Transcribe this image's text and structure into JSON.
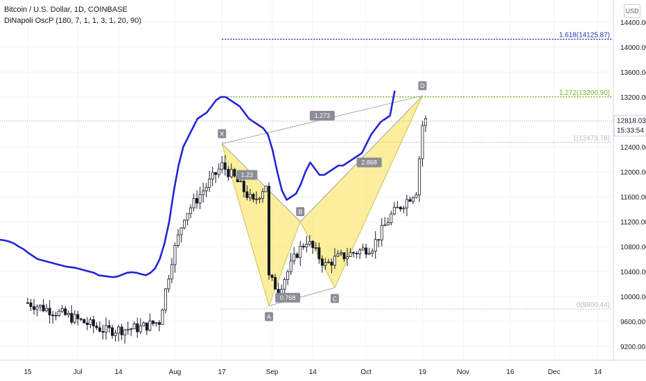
{
  "legend": {
    "symbol": "Bitcoin / U.S. Dollar, 1D, COINBASE",
    "indicator": "DiNapoli OscP (180, 7, 1, 1, 3, 1, 20, 90)"
  },
  "currency_button": "USD",
  "price_axis": {
    "ticks": [
      "14400.00",
      "14000.00",
      "13600.00",
      "13200.00",
      "12800.00",
      "12400.00",
      "12000.00",
      "11600.00",
      "11200.00",
      "10800.00",
      "10400.00",
      "10000.00",
      "9600.00",
      "9200.00"
    ]
  },
  "time_axis": {
    "labels": [
      {
        "text": "15",
        "t": 0
      },
      {
        "text": "Jul",
        "t": 16
      },
      {
        "text": "14",
        "t": 29
      },
      {
        "text": "Aug",
        "t": 47
      },
      {
        "text": "17",
        "t": 62
      },
      {
        "text": "Sep",
        "t": 78
      },
      {
        "text": "14",
        "t": 91
      },
      {
        "text": "Oct",
        "t": 108
      },
      {
        "text": "19",
        "t": 126
      },
      {
        "text": "Nov",
        "t": 139
      },
      {
        "text": "16",
        "t": 154
      },
      {
        "text": "Dec",
        "t": 168
      },
      {
        "text": "14",
        "t": 182
      }
    ]
  },
  "colors": {
    "up": "#131722",
    "down": "#131722",
    "oscillator": "#2424d6",
    "pattern_fill": "#f7e04a",
    "fib_1618": "#2d2db0",
    "fib_1272": "#74b81f",
    "fib_neutral": "#b5b8c2",
    "last_price_bg": "#ffffff"
  },
  "chart_data": {
    "type": "candlestick",
    "title": "Bitcoin / U.S. Dollar, 1D, COINBASE",
    "ylim": [
      9300,
      14500
    ],
    "candles": [],
    "oscillator": {
      "name": "DiNapoli OscP (180, 7, 1, 1, 3, 1, 20, 90)",
      "values": [
        10910,
        10900,
        10880,
        10850,
        10800,
        10760,
        10700,
        10650,
        10600,
        10580,
        10560,
        10540,
        10520,
        10500,
        10480,
        10470,
        10460,
        10440,
        10420,
        10400,
        10380,
        10340,
        10330,
        10320,
        10310,
        10320,
        10350,
        10380,
        10390,
        10380,
        10360,
        10340,
        10380,
        10450,
        10600,
        10850,
        11200,
        11700,
        12100,
        12400,
        12550,
        12700,
        12850,
        12900,
        12950,
        13050,
        13150,
        13200,
        13200,
        13150,
        13100,
        13050,
        12950,
        12850,
        12800,
        12750,
        12700,
        12600,
        12350,
        12000,
        11700,
        11550,
        11600,
        11650,
        11800,
        12000,
        12150,
        12050,
        11950,
        11950,
        12000,
        12050,
        12100,
        12100,
        12150,
        12200,
        12250,
        12300,
        12450,
        12600,
        12700,
        12800,
        12850,
        12900,
        13300
      ]
    },
    "pattern": {
      "points": [
        {
          "label": "X",
          "t": 62,
          "price": 12450
        },
        {
          "label": "A",
          "t": 77,
          "price": 9850
        },
        {
          "label": "B",
          "t": 87,
          "price": 11200
        },
        {
          "label": "C",
          "t": 98,
          "price": 10140
        },
        {
          "label": "D",
          "t": 126,
          "price": 13220
        }
      ],
      "ratios": [
        {
          "text": "0.768",
          "t": 83,
          "price": 9980
        },
        {
          "text": "1.273",
          "t": 94,
          "price": 12900
        },
        {
          "text": "2.868",
          "t": 109,
          "price": 12150
        },
        {
          "text": "1.23",
          "t": 70,
          "price": 11950
        }
      ]
    },
    "fib_levels": [
      {
        "label": "1.618(14125.87)",
        "price": 14125.87,
        "from_t": 62
      },
      {
        "label": "1.272(13200.90)",
        "price": 13200.9,
        "from_t": 62
      },
      {
        "label": "1(12473.76)",
        "price": 12473.76,
        "from_t": 62
      },
      {
        "label": "0(9800.44)",
        "price": 9800.44,
        "from_t": 62
      }
    ],
    "last_price": "12818.03",
    "countdown": "15:33:54"
  }
}
